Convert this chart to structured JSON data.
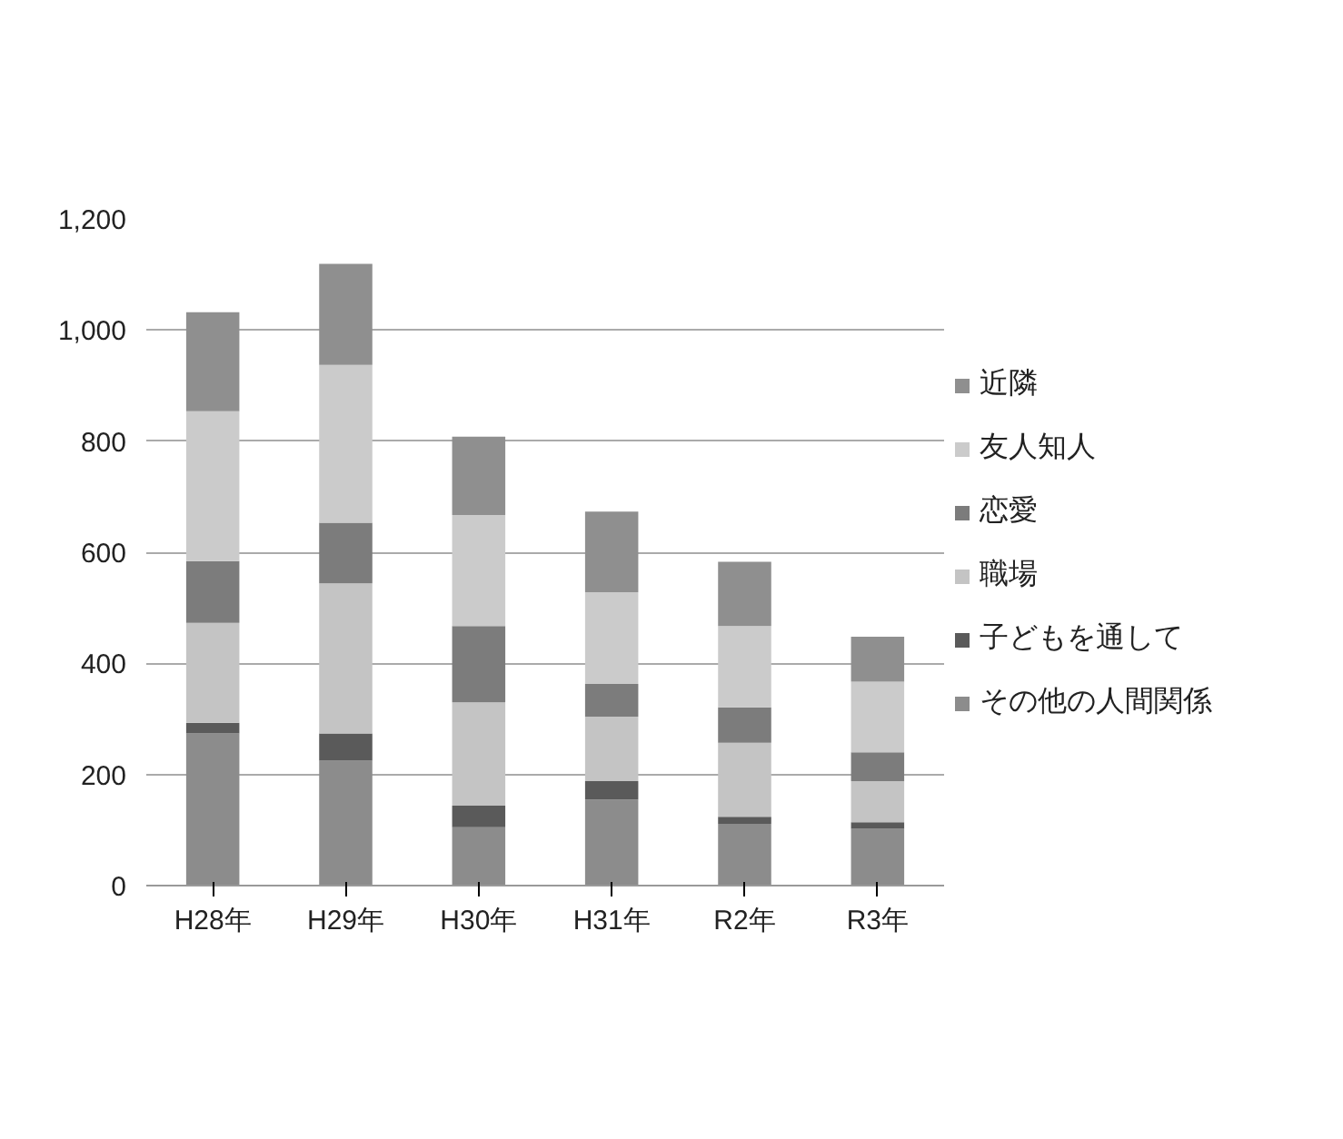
{
  "chart_data": {
    "type": "bar",
    "stacked": true,
    "categories": [
      "H28年",
      "H29年",
      "H30年",
      "H31年",
      "R2年",
      "R3年"
    ],
    "series": [
      {
        "name": "その他の人間関係",
        "color": "#8c8c8c",
        "values": [
          274,
          225,
          105,
          155,
          111,
          102
        ]
      },
      {
        "name": "子どもを通して",
        "color": "#5a5a5a",
        "values": [
          19,
          49,
          39,
          33,
          13,
          12
        ]
      },
      {
        "name": "職場",
        "color": "#c4c4c4",
        "values": [
          180,
          270,
          186,
          116,
          133,
          74
        ]
      },
      {
        "name": "恋愛",
        "color": "#7c7c7c",
        "values": [
          111,
          109,
          137,
          59,
          64,
          52
        ]
      },
      {
        "name": "友人知人",
        "color": "#cbcbcb",
        "values": [
          270,
          284,
          200,
          165,
          146,
          127
        ]
      },
      {
        "name": "近隣",
        "color": "#8f8f8f",
        "values": [
          178,
          182,
          141,
          145,
          116,
          81
        ]
      }
    ],
    "ylim": [
      0,
      1200
    ],
    "yticks": [
      {
        "value": 0,
        "label": "0"
      },
      {
        "value": 200,
        "label": "200"
      },
      {
        "value": 400,
        "label": "400"
      },
      {
        "value": 600,
        "label": "600"
      },
      {
        "value": 800,
        "label": "800"
      },
      {
        "value": 1000,
        "label": "1,000"
      },
      {
        "value": 1200,
        "label": "1,200"
      }
    ],
    "grid": "y",
    "legend": "right"
  }
}
